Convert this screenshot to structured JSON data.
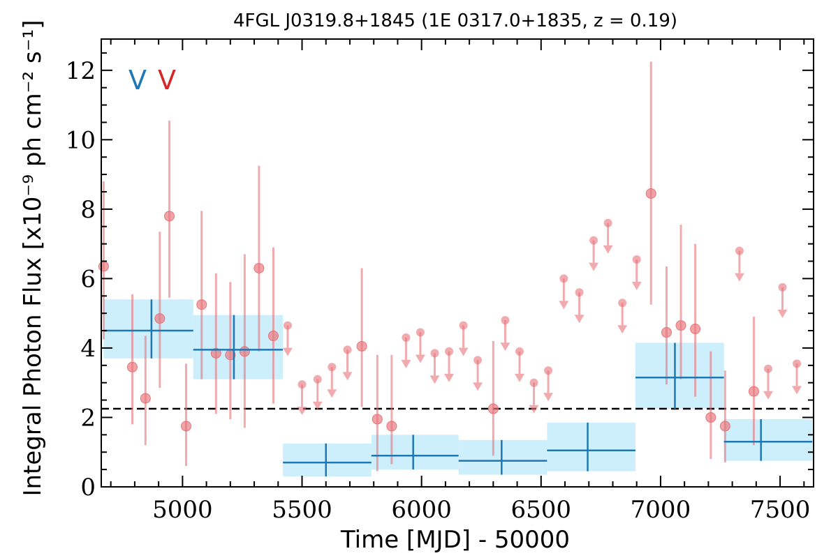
{
  "chart_data": {
    "type": "scatter",
    "title": "4FGL J0319.8+1845 (1E 0317.0+1835, z = 0.19)",
    "xlabel": "Time [MJD] - 50000",
    "ylabel": "Integral Photon Flux [x10⁻⁹ ph cm⁻² s⁻¹]",
    "xlim": [
      4660,
      7640
    ],
    "ylim": [
      0,
      12.9
    ],
    "xticks": [
      5000,
      5500,
      6000,
      6500,
      7000,
      7500
    ],
    "yticks": [
      0,
      2,
      4,
      6,
      8,
      10,
      12
    ],
    "mean_flux": 2.25,
    "markers": [
      {
        "label": "V",
        "color": "#1f77b4"
      },
      {
        "label": "V",
        "color": "#d62728"
      }
    ],
    "colors": {
      "points": "#e8737a",
      "bins": "#1f77b4",
      "bin_band": "#cdeefb",
      "mean_line": "#000000"
    },
    "series": [
      {
        "kind": "detections",
        "x": [
          4670,
          4790,
          4845,
          4905,
          4945,
          5015,
          5080,
          5140,
          5200,
          5260,
          5320,
          5380,
          5750,
          5815,
          5875,
          6300,
          6960,
          7025,
          7085,
          7145,
          7210,
          7270,
          7390
        ],
        "y": [
          6.35,
          3.45,
          2.55,
          4.85,
          7.8,
          1.75,
          5.25,
          3.85,
          3.8,
          3.9,
          6.3,
          4.35,
          4.05,
          1.95,
          1.75,
          2.25,
          8.45,
          4.45,
          4.65,
          4.55,
          2.0,
          1.75,
          2.75
        ],
        "yerr_low": [
          2.1,
          1.65,
          1.35,
          2.0,
          2.35,
          1.15,
          2.15,
          1.75,
          1.85,
          2.2,
          2.4,
          1.95,
          1.75,
          1.5,
          1.1,
          1.35,
          3.2,
          1.5,
          1.55,
          1.95,
          1.2,
          1.05,
          1.55
        ],
        "yerr_high": [
          2.45,
          2.1,
          1.8,
          2.5,
          2.75,
          1.8,
          2.7,
          2.3,
          2.1,
          2.8,
          2.95,
          2.55,
          2.25,
          1.85,
          2.05,
          1.95,
          3.8,
          1.9,
          2.9,
          2.45,
          1.9,
          1.6,
          2.15
        ]
      },
      {
        "kind": "upper_limits",
        "x": [
          5440,
          5500,
          5565,
          5625,
          5690,
          5935,
          5995,
          6055,
          6115,
          6175,
          6235,
          6350,
          6410,
          6470,
          6530,
          6595,
          6660,
          6720,
          6780,
          6840,
          6900,
          7330,
          7450,
          7510,
          7570
        ],
        "y": [
          4.65,
          2.95,
          3.1,
          3.45,
          3.95,
          4.3,
          4.45,
          3.85,
          3.9,
          4.65,
          3.65,
          4.8,
          3.9,
          3.0,
          3.35,
          6.0,
          5.6,
          7.1,
          7.6,
          5.3,
          6.55,
          6.8,
          3.4,
          5.75,
          3.55
        ]
      },
      {
        "kind": "binned",
        "x_low": [
          4670,
          5045,
          5420,
          5790,
          6155,
          6525,
          6895,
          7265
        ],
        "x_high": [
          5045,
          5420,
          5790,
          6155,
          6525,
          6895,
          7265,
          7635
        ],
        "x_center": [
          4870,
          5215,
          5600,
          5965,
          6335,
          6695,
          7060,
          7420
        ],
        "y": [
          4.5,
          3.95,
          0.7,
          0.9,
          0.75,
          1.05,
          3.15,
          1.3
        ],
        "band_low": [
          3.7,
          3.1,
          0.3,
          0.5,
          0.35,
          0.45,
          2.25,
          0.75
        ],
        "band_high": [
          5.4,
          4.95,
          1.25,
          1.5,
          1.35,
          1.85,
          4.15,
          1.95
        ]
      }
    ]
  }
}
